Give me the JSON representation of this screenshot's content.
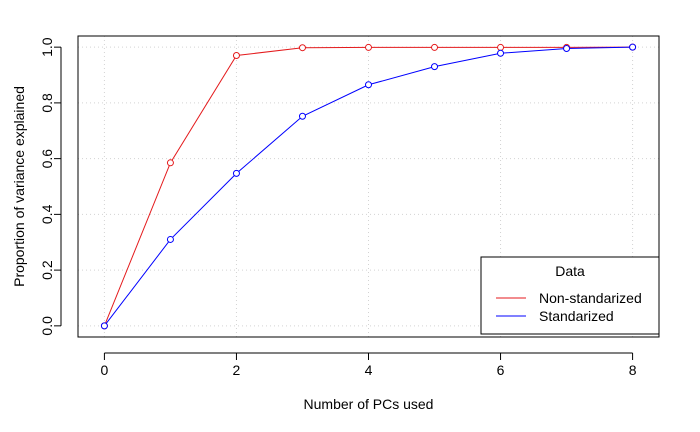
{
  "chart_data": {
    "type": "line",
    "title": "",
    "xlabel": "Number of PCs used",
    "ylabel": "Proportion of variance explained",
    "xlim": [
      -0.4,
      8.4
    ],
    "ylim": [
      -0.04,
      1.04
    ],
    "x_ticks": [
      0,
      2,
      4,
      6,
      8
    ],
    "y_ticks": [
      0.0,
      0.2,
      0.4,
      0.6,
      0.8,
      1.0
    ],
    "x_tick_labels": [
      "0",
      "2",
      "4",
      "6",
      "8"
    ],
    "y_tick_labels": [
      "0.0",
      "0.2",
      "0.4",
      "0.6",
      "0.8",
      "1.0"
    ],
    "grid": true,
    "legend": {
      "title": "Data",
      "position": "bottom-right",
      "entries": [
        "Non-standarized",
        "Standarized"
      ]
    },
    "x": [
      0,
      1,
      2,
      3,
      4,
      5,
      6,
      7,
      8
    ],
    "series": [
      {
        "name": "Non-standarized",
        "color": "#e41a1c",
        "values": [
          0.0,
          0.585,
          0.97,
          0.998,
          0.999,
          0.999,
          0.999,
          0.999,
          1.0
        ]
      },
      {
        "name": "Standarized",
        "color": "#0000ff",
        "values": [
          0.0,
          0.31,
          0.547,
          0.752,
          0.865,
          0.93,
          0.978,
          0.995,
          1.0
        ]
      }
    ]
  }
}
